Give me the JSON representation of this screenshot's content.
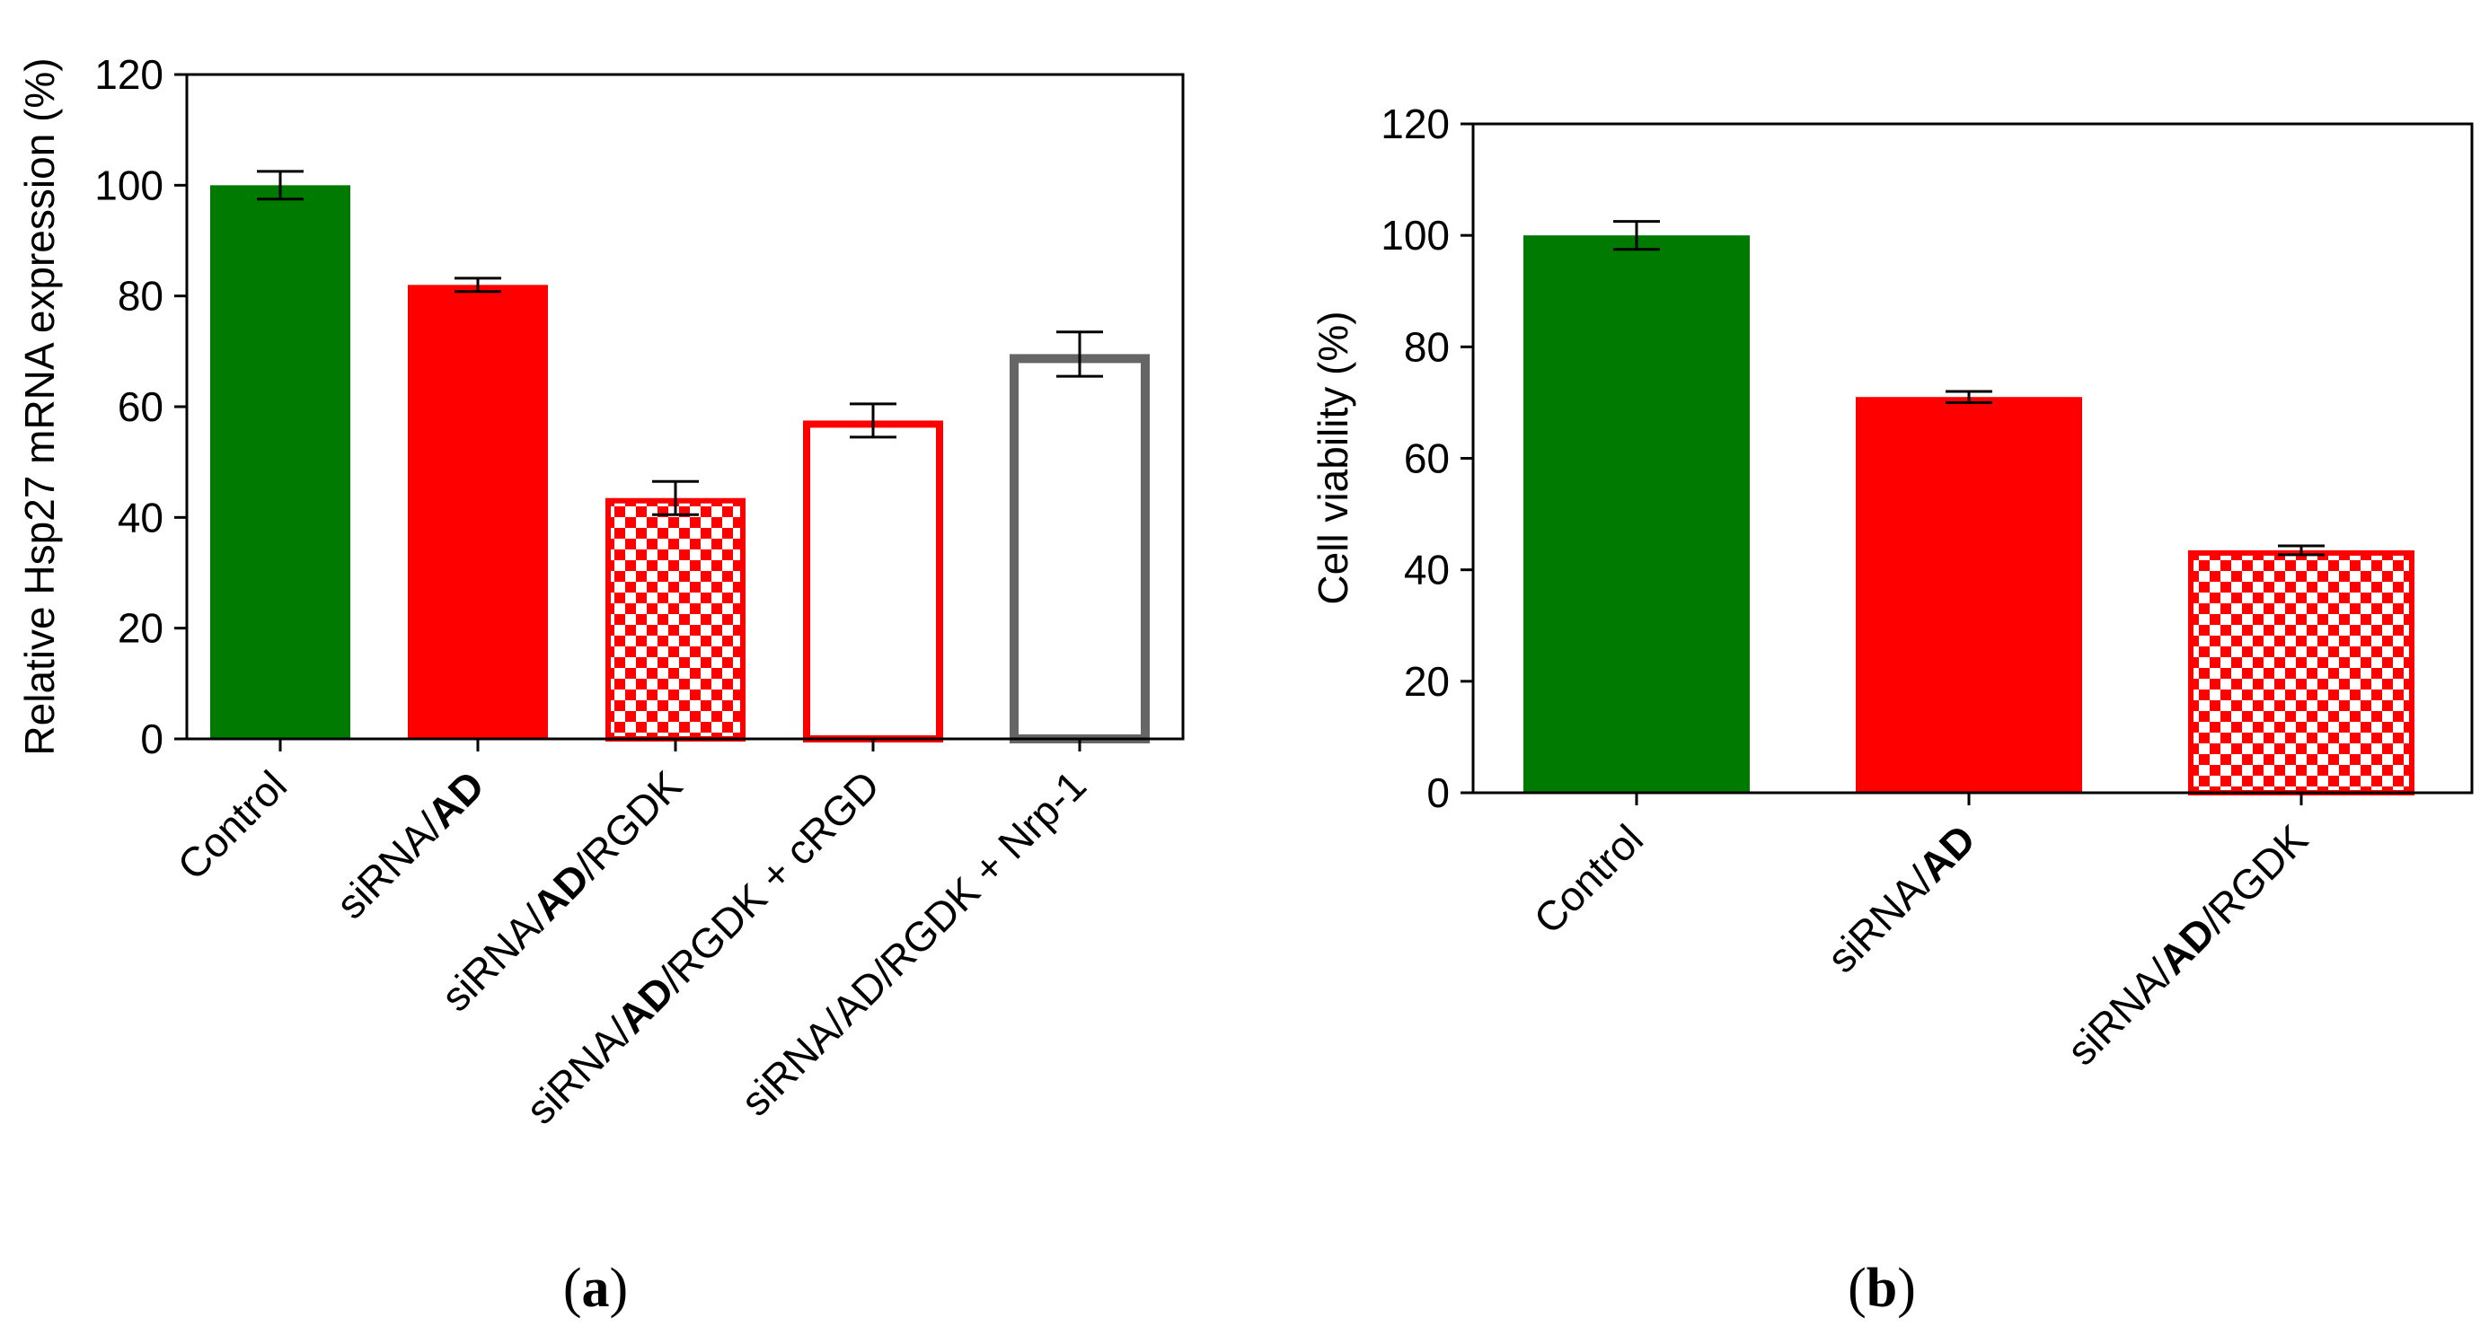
{
  "colors": {
    "green": "#007a00",
    "red": "#ff0000",
    "gray": "#666666",
    "white": "#ffffff",
    "black": "#000000"
  },
  "chart_data": [
    {
      "type": "bar",
      "panel": "a",
      "caption": {
        "open": "(",
        "letter": "a",
        "close": ")"
      },
      "title": "",
      "xlabel": "",
      "ylabel": "Relative Hsp27 mRNA expression (%)",
      "ylim": [
        0,
        120
      ],
      "yticks": [
        0,
        20,
        40,
        60,
        80,
        100,
        120
      ],
      "categories": [
        {
          "parts": [
            {
              "text": "Control",
              "bold": false
            }
          ]
        },
        {
          "parts": [
            {
              "text": "siRNA/",
              "bold": false
            },
            {
              "text": "AD",
              "bold": true
            }
          ]
        },
        {
          "parts": [
            {
              "text": "siRNA/",
              "bold": false
            },
            {
              "text": "AD",
              "bold": true
            },
            {
              "text": "/RGDK",
              "bold": false
            }
          ]
        },
        {
          "parts": [
            {
              "text": "siRNA/",
              "bold": false
            },
            {
              "text": "AD",
              "bold": true
            },
            {
              "text": "/RGDK + cRGD",
              "bold": false
            }
          ]
        },
        {
          "parts": [
            {
              "text": "siRNA/AD/RGDK + Nrp-1",
              "bold": false
            }
          ]
        }
      ],
      "values": [
        100,
        82,
        43.5,
        57.5,
        69.5
      ],
      "errors": [
        2.5,
        1.2,
        3,
        3,
        4
      ],
      "styles": [
        "solid-green",
        "solid-red",
        "checker-red",
        "outline-red",
        "outline-gray"
      ]
    },
    {
      "type": "bar",
      "panel": "b",
      "caption": {
        "open": "(",
        "letter": "b",
        "close": ")"
      },
      "title": "",
      "xlabel": "",
      "ylabel": "Cell viability (%)",
      "ylim": [
        0,
        120
      ],
      "yticks": [
        0,
        20,
        40,
        60,
        80,
        100,
        120
      ],
      "categories": [
        {
          "parts": [
            {
              "text": "Control",
              "bold": false
            }
          ]
        },
        {
          "parts": [
            {
              "text": "siRNA/",
              "bold": false
            },
            {
              "text": "AD",
              "bold": true
            }
          ]
        },
        {
          "parts": [
            {
              "text": "siRNA/",
              "bold": false
            },
            {
              "text": "AD",
              "bold": true
            },
            {
              "text": "/RGDK",
              "bold": false
            }
          ]
        }
      ],
      "values": [
        100,
        71,
        43.5
      ],
      "errors": [
        2.5,
        1,
        0.8
      ],
      "styles": [
        "solid-green",
        "solid-red",
        "checker-red"
      ]
    }
  ]
}
